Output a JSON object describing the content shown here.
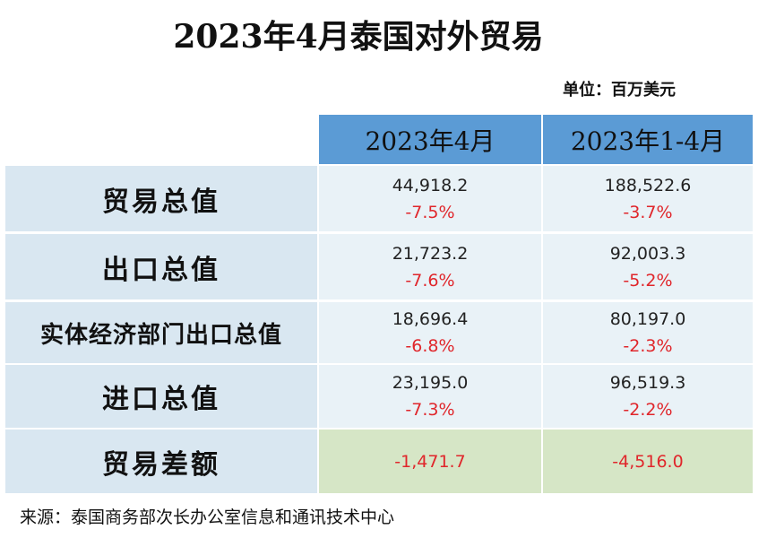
{
  "header": {
    "title": "2023年4月泰国对外贸易",
    "unit": "单位：百万美元"
  },
  "table": {
    "columns": [
      "2023年4月",
      "2023年1-4月"
    ],
    "rows": [
      {
        "label": "贸易总值",
        "cells": [
          {
            "value": "44,918.2",
            "change": "-7.5%"
          },
          {
            "value": "188,522.6",
            "change": "-3.7%"
          }
        ]
      },
      {
        "label": "出口总值",
        "cells": [
          {
            "value": "21,723.2",
            "change": "-7.6%"
          },
          {
            "value": "92,003.3",
            "change": "-5.2%"
          }
        ]
      },
      {
        "label": "实体经济部门出口总值",
        "cells": [
          {
            "value": "18,696.4",
            "change": "-6.8%"
          },
          {
            "value": "80,197.0",
            "change": "-2.3%"
          }
        ]
      },
      {
        "label": "进口总值",
        "cells": [
          {
            "value": "23,195.0",
            "change": "-7.3%"
          },
          {
            "value": "96,519.3",
            "change": "-2.2%"
          }
        ]
      },
      {
        "label": "贸易差额",
        "cells": [
          {
            "value": "-1,471.7"
          },
          {
            "value": "-4,516.0"
          }
        ]
      }
    ]
  },
  "footer": {
    "source": "来源：泰国商务部次长办公室信息和通讯技术中心"
  }
}
